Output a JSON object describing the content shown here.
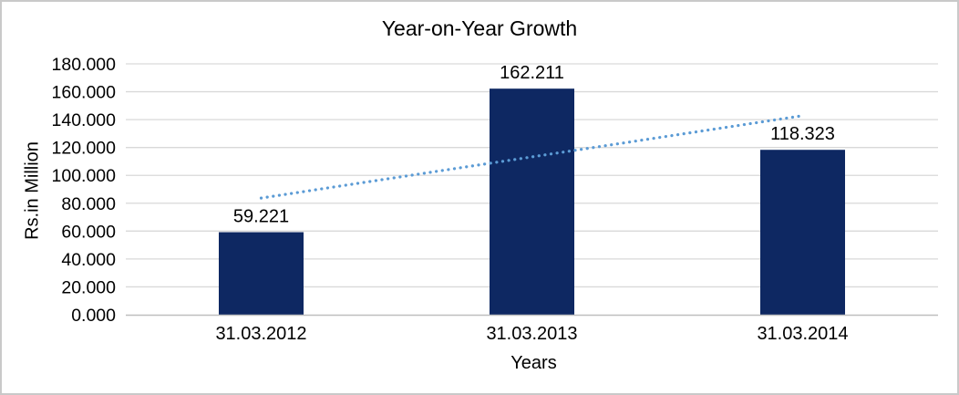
{
  "chart_data": {
    "type": "bar",
    "title": "Year-on-Year Growth",
    "xlabel": "Years",
    "ylabel": "Rs.in Million",
    "categories": [
      "31.03.2012",
      "31.03.2013",
      "31.03.2014"
    ],
    "values": [
      59.221,
      162.211,
      118.323
    ],
    "data_labels": [
      "59.221",
      "162.211",
      "118.323"
    ],
    "ylim": [
      0,
      180
    ],
    "ytick_step": 20,
    "ytick_labels": [
      "0.000",
      "20.000",
      "40.000",
      "60.000",
      "80.000",
      "100.000",
      "120.000",
      "140.000",
      "160.000",
      "180.000"
    ],
    "grid": true,
    "legend": false,
    "trendline": {
      "type": "linear",
      "style": "dotted"
    },
    "colors": {
      "bar": "#0e2862",
      "trendline": "#5b9bd5",
      "gridline": "#d9d9d9",
      "axis_line": "#bfbfbf",
      "text": "#000000",
      "frame_border": "#c9c9c9",
      "background": "#ffffff"
    }
  }
}
